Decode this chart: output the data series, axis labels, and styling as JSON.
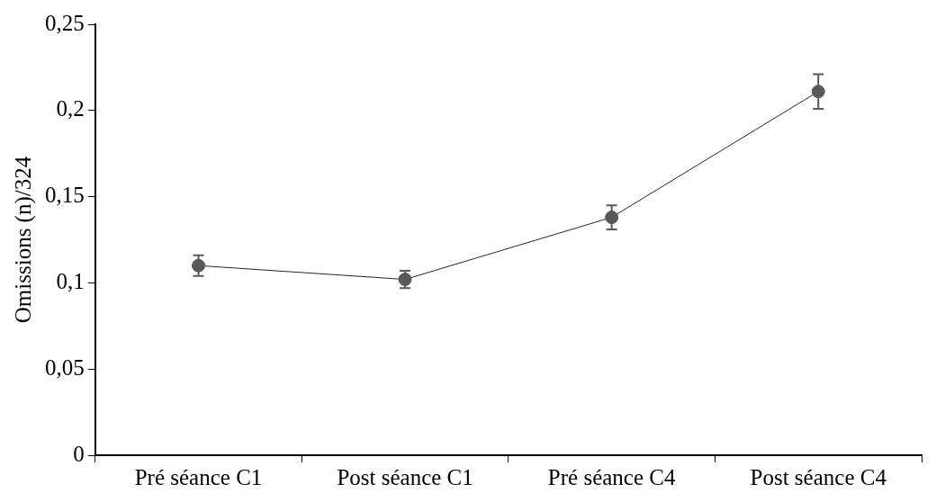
{
  "chart_data": {
    "type": "line",
    "ylabel": "Omissions (n)/324",
    "categories": [
      "Pré séance C1",
      "Post séance C1",
      "Pré séance C4",
      "Post séance C4"
    ],
    "series": [
      {
        "color": "#595959",
        "values": [
          0.11,
          0.102,
          0.138,
          0.211
        ],
        "errors": [
          0.006,
          0.005,
          0.007,
          0.01
        ]
      }
    ],
    "ylim": [
      0,
      0.25
    ],
    "yticks": [
      {
        "value": 0,
        "label": "0"
      },
      {
        "value": 0.05,
        "label": "0,05"
      },
      {
        "value": 0.1,
        "label": "0,1"
      },
      {
        "value": 0.15,
        "label": "0,15"
      },
      {
        "value": 0.2,
        "label": "0,2"
      },
      {
        "value": 0.25,
        "label": "0,25"
      }
    ],
    "marker": "circle",
    "line_style": "solid",
    "legend": false
  }
}
